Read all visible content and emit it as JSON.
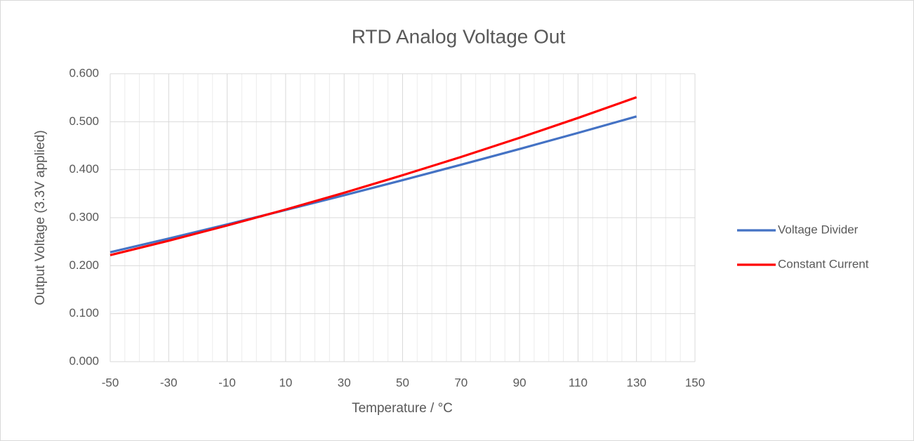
{
  "chart_data": {
    "type": "line",
    "title": "RTD Analog Voltage Out",
    "x_label": "Temperature / °C",
    "y_label": "Output Voltage (3.3V applied)",
    "x": [
      -50,
      -30,
      -10,
      10,
      30,
      50,
      70,
      90,
      110,
      130
    ],
    "series": [
      {
        "name": "Voltage Divider",
        "color": "#4472c4",
        "values": [
          0.228,
          0.2566,
          0.286,
          0.316,
          0.3468,
          0.3782,
          0.4104,
          0.4432,
          0.4767,
          0.511
        ]
      },
      {
        "name": "Constant Current",
        "color": "#ff0000",
        "values": [
          0.222,
          0.252,
          0.2837,
          0.317,
          0.3519,
          0.3885,
          0.4266,
          0.4665,
          0.5079,
          0.551
        ]
      }
    ],
    "xlim": [
      -50,
      150
    ],
    "xticks": [
      -50,
      -30,
      -10,
      10,
      30,
      50,
      70,
      90,
      110,
      130,
      150
    ],
    "xminorticks": [
      -45,
      -40,
      -35,
      -25,
      -20,
      -15,
      -5,
      0,
      5,
      15,
      20,
      25,
      35,
      40,
      45,
      55,
      60,
      65,
      75,
      80,
      85,
      95,
      100,
      105,
      115,
      120,
      125,
      135,
      140,
      145
    ],
    "ylim": [
      0,
      0.6
    ],
    "yticks": [
      {
        "value": 0,
        "label": "0.000"
      },
      {
        "value": 0.1,
        "label": "0.100"
      },
      {
        "value": 0.2,
        "label": "0.200"
      },
      {
        "value": 0.3,
        "label": "0.300"
      },
      {
        "value": 0.4,
        "label": "0.400"
      },
      {
        "value": 0.5,
        "label": "0.500"
      },
      {
        "value": 0.6,
        "label": "0.600"
      }
    ],
    "grid": true,
    "legend": "right"
  }
}
